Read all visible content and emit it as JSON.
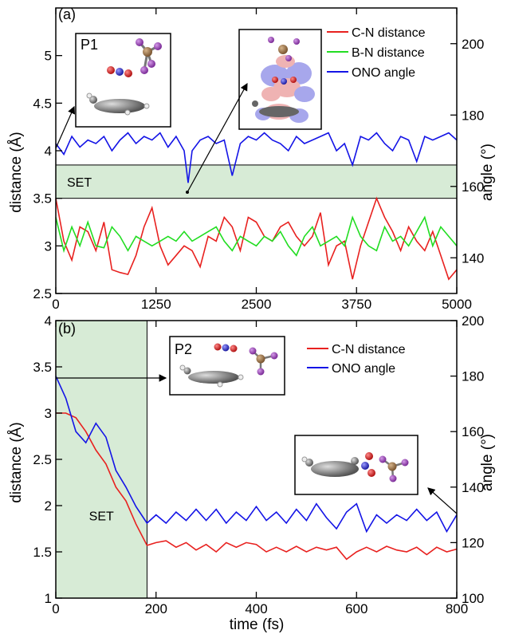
{
  "chart_data": [
    {
      "type": "line",
      "panel_label": "(a)",
      "xlabel": "",
      "ylabel_left": "distance (Å)",
      "ylabel_right": "angle (°)",
      "xlim": [
        0,
        5000
      ],
      "ylim_left": [
        2.5,
        5.5
      ],
      "ylim_right": [
        130,
        210
      ],
      "x_ticks": [
        "0",
        "1250",
        "2500",
        "3750",
        "5000"
      ],
      "y_ticks_left": [
        "2.5",
        "3",
        "3.5",
        "4",
        "4.5",
        "5"
      ],
      "y_ticks_right": [
        "140",
        "160",
        "180",
        "200"
      ],
      "shaded_region": {
        "label": "SET",
        "y_from": 3.5,
        "y_to": 3.85,
        "color": "#d7ebd6"
      },
      "inset_labels": [
        "P1"
      ],
      "series": [
        {
          "name": "C-N distance",
          "axis": "left",
          "color": "#e8211f",
          "x": [
            0,
            100,
            200,
            300,
            400,
            500,
            600,
            700,
            800,
            900,
            1000,
            1100,
            1200,
            1300,
            1400,
            1500,
            1600,
            1700,
            1800,
            1900,
            2000,
            2100,
            2200,
            2300,
            2400,
            2500,
            2600,
            2700,
            2800,
            2900,
            3000,
            3100,
            3200,
            3300,
            3400,
            3500,
            3600,
            3700,
            3800,
            3900,
            4000,
            4100,
            4200,
            4300,
            4400,
            4500,
            4600,
            4700,
            4800,
            4900,
            5000
          ],
          "values": [
            3.5,
            3.05,
            2.85,
            3.2,
            3.15,
            2.95,
            3.25,
            2.75,
            2.72,
            2.7,
            2.9,
            3.2,
            3.4,
            3.0,
            2.8,
            2.9,
            3.0,
            2.95,
            2.78,
            3.1,
            3.05,
            3.3,
            3.2,
            2.95,
            3.3,
            3.25,
            3.1,
            3.05,
            3.2,
            3.25,
            3.1,
            3.0,
            3.1,
            3.35,
            2.8,
            3.0,
            3.05,
            2.65,
            3.0,
            3.25,
            3.5,
            3.3,
            3.15,
            2.95,
            3.2,
            3.05,
            2.95,
            3.15,
            2.9,
            2.65,
            2.75
          ]
        },
        {
          "name": "B-N distance",
          "axis": "left",
          "color": "#22dd22",
          "x": [
            0,
            100,
            200,
            300,
            400,
            500,
            600,
            700,
            800,
            900,
            1000,
            1100,
            1200,
            1300,
            1400,
            1500,
            1600,
            1700,
            1800,
            1900,
            2000,
            2100,
            2200,
            2300,
            2400,
            2500,
            2600,
            2700,
            2800,
            2900,
            3000,
            3100,
            3200,
            3300,
            3400,
            3500,
            3600,
            3700,
            3800,
            3900,
            4000,
            4100,
            4200,
            4300,
            4400,
            4500,
            4600,
            4700,
            4800,
            4900,
            5000
          ],
          "values": [
            3.3,
            2.95,
            3.2,
            3.0,
            3.25,
            3.0,
            2.98,
            3.2,
            3.1,
            2.95,
            3.1,
            3.05,
            3.0,
            3.05,
            3.1,
            3.05,
            3.15,
            3.05,
            3.1,
            3.15,
            3.2,
            3.05,
            2.95,
            3.1,
            3.05,
            3.0,
            3.1,
            3.05,
            3.15,
            3.0,
            2.9,
            3.1,
            3.2,
            3.0,
            3.05,
            3.1,
            3.0,
            3.3,
            3.1,
            3.0,
            2.95,
            3.2,
            3.05,
            3.1,
            3.0,
            3.15,
            3.3,
            3.0,
            3.2,
            3.1,
            3.0
          ]
        },
        {
          "name": "ONO angle",
          "axis": "right",
          "color": "#1414e6",
          "x": [
            0,
            100,
            200,
            300,
            400,
            500,
            600,
            700,
            800,
            900,
            1000,
            1100,
            1200,
            1300,
            1400,
            1500,
            1600,
            1650,
            1700,
            1800,
            1900,
            2000,
            2100,
            2200,
            2300,
            2400,
            2500,
            2600,
            2700,
            2800,
            2900,
            3000,
            3100,
            3200,
            3300,
            3400,
            3500,
            3600,
            3700,
            3800,
            3900,
            4000,
            4100,
            4200,
            4300,
            4400,
            4500,
            4600,
            4700,
            4800,
            4900,
            5000
          ],
          "values": [
            172,
            169,
            174,
            171,
            173,
            172,
            174,
            170,
            173,
            175,
            172,
            174,
            173,
            175,
            171,
            174,
            170,
            161,
            170,
            173,
            174,
            172,
            173,
            163,
            172,
            174,
            173,
            175,
            173,
            172,
            170,
            174,
            172,
            173,
            174,
            175,
            170,
            172,
            166,
            174,
            173,
            175,
            172,
            170,
            174,
            173,
            167,
            174,
            173,
            174,
            175,
            173
          ]
        }
      ]
    },
    {
      "type": "line",
      "panel_label": "(b)",
      "xlabel": "time (fs)",
      "ylabel_left": "distance (Å)",
      "ylabel_right": "angle (°)",
      "xlim": [
        0,
        800
      ],
      "ylim_left": [
        1,
        4
      ],
      "ylim_right": [
        100,
        200
      ],
      "x_ticks": [
        "0",
        "200",
        "400",
        "600",
        "800"
      ],
      "y_ticks_left": [
        "1",
        "1.5",
        "2",
        "2.5",
        "3",
        "3.5",
        "4"
      ],
      "y_ticks_right": [
        "100",
        "120",
        "140",
        "160",
        "180",
        "200"
      ],
      "shaded_region": {
        "label": "SET",
        "x_from": 0,
        "x_to": 182,
        "color": "#d7ebd6"
      },
      "inset_labels": [
        "P2"
      ],
      "series": [
        {
          "name": "C-N distance",
          "axis": "left",
          "color": "#e8211f",
          "x": [
            0,
            20,
            40,
            60,
            80,
            100,
            120,
            140,
            160,
            182,
            200,
            220,
            240,
            260,
            280,
            300,
            320,
            340,
            360,
            380,
            400,
            420,
            440,
            460,
            480,
            500,
            520,
            540,
            560,
            580,
            600,
            620,
            640,
            660,
            680,
            700,
            720,
            740,
            760,
            780,
            800
          ],
          "values": [
            3.0,
            3.0,
            2.95,
            2.8,
            2.6,
            2.45,
            2.2,
            2.05,
            1.8,
            1.57,
            1.6,
            1.62,
            1.55,
            1.6,
            1.52,
            1.58,
            1.5,
            1.6,
            1.55,
            1.6,
            1.58,
            1.5,
            1.55,
            1.5,
            1.56,
            1.5,
            1.55,
            1.52,
            1.55,
            1.42,
            1.5,
            1.55,
            1.5,
            1.56,
            1.52,
            1.5,
            1.55,
            1.47,
            1.55,
            1.5,
            1.53
          ]
        },
        {
          "name": "ONO angle",
          "axis": "right",
          "color": "#1414e6",
          "x": [
            0,
            20,
            40,
            60,
            80,
            100,
            120,
            140,
            160,
            182,
            200,
            220,
            240,
            260,
            280,
            300,
            320,
            340,
            360,
            380,
            400,
            420,
            440,
            460,
            480,
            500,
            520,
            540,
            560,
            580,
            600,
            620,
            640,
            660,
            680,
            700,
            720,
            740,
            760,
            780,
            800
          ],
          "values": [
            180,
            172,
            160,
            156,
            163,
            158,
            146,
            140,
            133,
            127,
            130,
            127,
            131,
            128,
            132,
            128,
            132,
            127,
            131,
            128,
            133,
            128,
            131,
            127,
            132,
            128,
            134,
            129,
            125,
            131,
            134,
            124,
            130,
            127,
            130,
            128,
            132,
            128,
            131,
            124,
            130
          ]
        }
      ]
    }
  ]
}
